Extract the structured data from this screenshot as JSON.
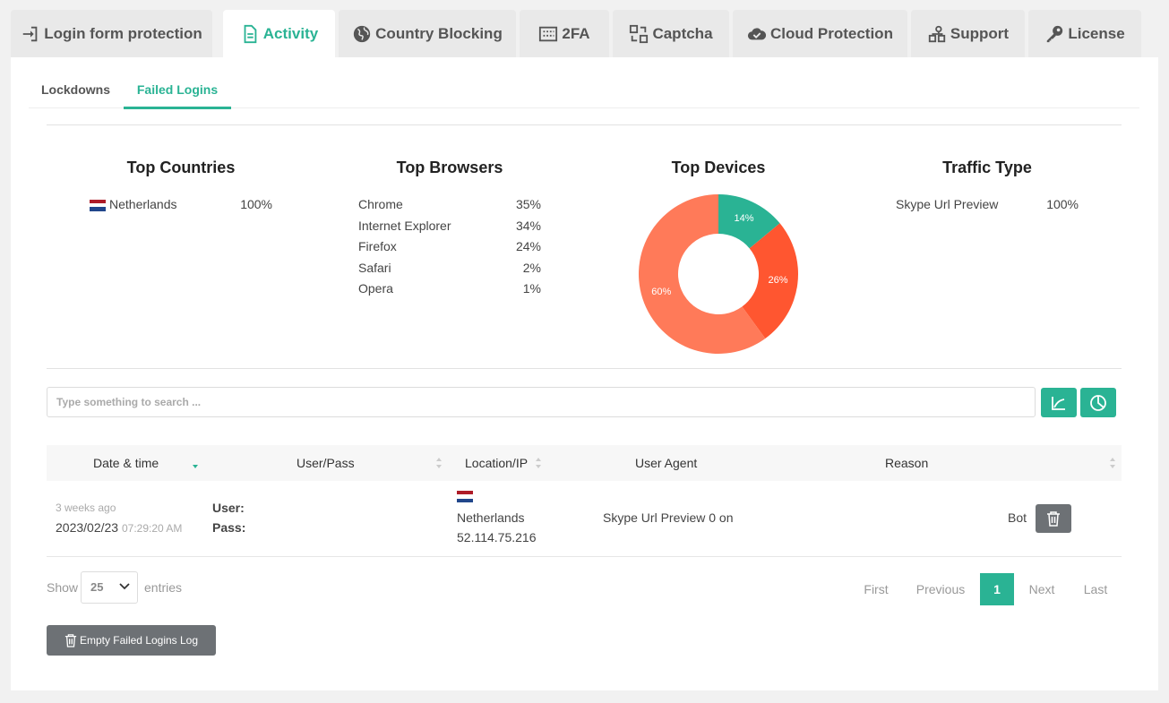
{
  "tabs": [
    {
      "label": "Login form protection",
      "icon": "login-icon"
    },
    {
      "label": "Activity",
      "icon": "document-icon"
    },
    {
      "label": "Country Blocking",
      "icon": "globe-icon"
    },
    {
      "label": "2FA",
      "icon": "keypad-icon"
    },
    {
      "label": "Captcha",
      "icon": "captcha-icon"
    },
    {
      "label": "Cloud Protection",
      "icon": "cloud-check-icon"
    },
    {
      "label": "Support",
      "icon": "support-icon"
    },
    {
      "label": "License",
      "icon": "key-icon"
    }
  ],
  "subtabs": [
    "Lockdowns",
    "Failed Logins"
  ],
  "stats": {
    "countries": {
      "title": "Top Countries",
      "items": [
        {
          "label": "Netherlands",
          "value": "100%"
        }
      ]
    },
    "browsers": {
      "title": "Top Browsers",
      "items": [
        {
          "label": "Chrome",
          "value": "35%"
        },
        {
          "label": "Internet Explorer",
          "value": "34%"
        },
        {
          "label": "Firefox",
          "value": "24%"
        },
        {
          "label": "Safari",
          "value": "2%"
        },
        {
          "label": "Opera",
          "value": "1%"
        }
      ]
    },
    "devices": {
      "title": "Top Devices"
    },
    "traffic": {
      "title": "Traffic Type",
      "items": [
        {
          "label": "Skype Url Preview",
          "value": "100%"
        }
      ]
    }
  },
  "chart_data": {
    "type": "pie",
    "title": "Top Devices",
    "slices": [
      {
        "label": "14%",
        "value": 14,
        "color": "#2ab394"
      },
      {
        "label": "26%",
        "value": 26,
        "color": "#ff5630"
      },
      {
        "label": "60%",
        "value": 60,
        "color": "#ff7a59"
      }
    ]
  },
  "search": {
    "placeholder": "Type something to search ..."
  },
  "table": {
    "headers": [
      "Date & time",
      "User/Pass",
      "Location/IP",
      "User Agent",
      "Reason"
    ],
    "rows": [
      {
        "ago": "3 weeks ago",
        "date": "2023/02/23",
        "time": "07:29:20 AM",
        "user_label": "User:",
        "pass_label": "Pass:",
        "country": "Netherlands",
        "ip": "52.114.75.216",
        "agent": "Skype Url Preview 0 on",
        "reason": "Bot"
      }
    ]
  },
  "length": {
    "show": "Show",
    "value": "25",
    "entries": "entries"
  },
  "pagination": {
    "first": "First",
    "previous": "Previous",
    "current": "1",
    "next": "Next",
    "last": "Last"
  },
  "empty_button": "Empty Failed Logins Log",
  "colors": {
    "accent": "#2ab394",
    "pie_red": "#ff5630",
    "pie_orange": "#ff7a59",
    "dark_button": "#6d7175"
  }
}
